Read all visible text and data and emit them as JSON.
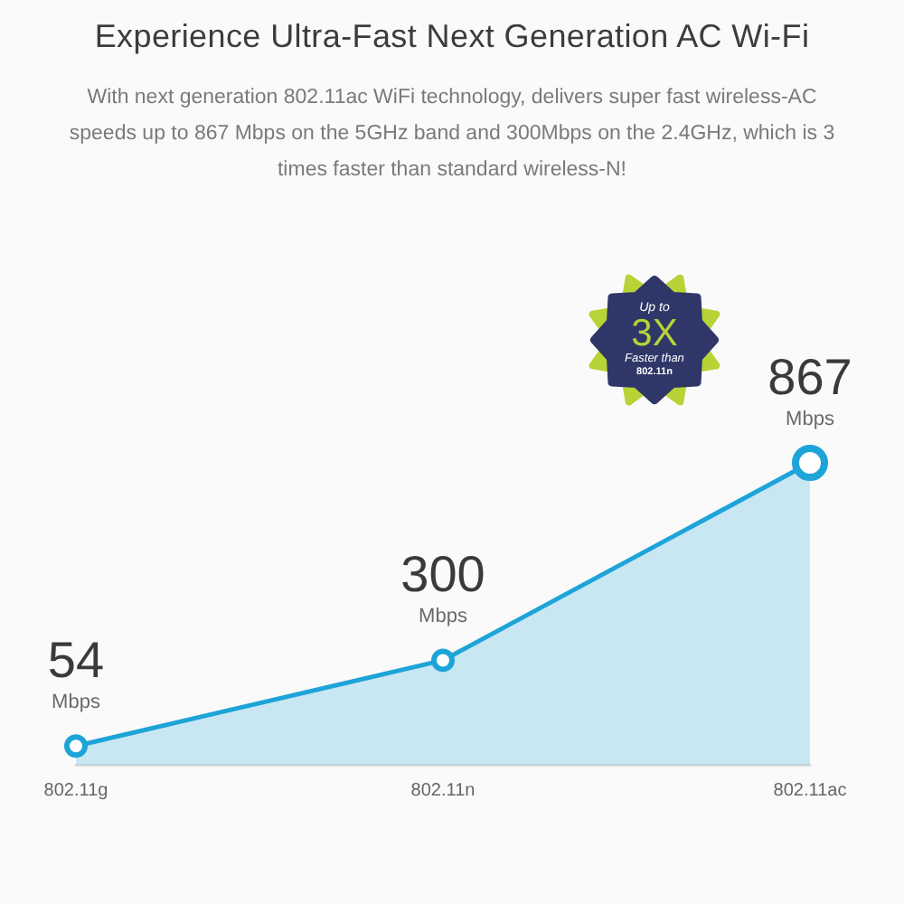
{
  "chart_data": {
    "type": "area",
    "title": "Experience Ultra-Fast Next Generation AC Wi-Fi",
    "subtitle": "With next generation 802.11ac WiFi technology, delivers super fast wireless-AC speeds up to 867 Mbps on the 5GHz band and 300Mbps on the 2.4GHz, which is 3 times faster than standard wireless-N!",
    "categories": [
      "802.11g",
      "802.11n",
      "802.11ac"
    ],
    "values": [
      54,
      300,
      867
    ],
    "color": "#1da4d9",
    "value_labels": [
      "54 Mbps",
      "300 Mbps",
      "867 Mbps"
    ],
    "marker": "circle",
    "grid": false,
    "legend": false,
    "tick_labels": "x",
    "annotations": [
      "Up to",
      "3X",
      "Faster than",
      "802.11n"
    ]
  }
}
